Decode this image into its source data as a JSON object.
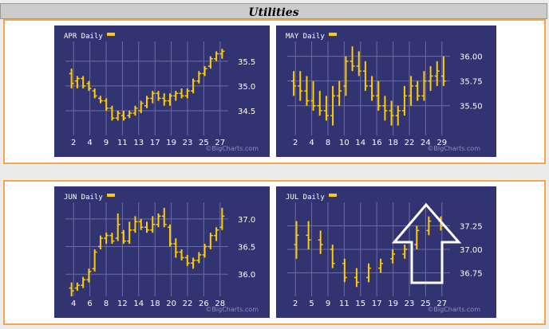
{
  "title": "Utilities",
  "watermark": "©BigCharts.com",
  "colors": {
    "background": "#323371",
    "bars": "#ffcc00",
    "grid": "#6b6ca5",
    "border": "#f5a54a"
  },
  "chart_data": [
    {
      "type": "ohlc",
      "label": "APR Daily",
      "x_tick_labels": [
        "2",
        "4",
        "9",
        "11",
        "13",
        "17",
        "19",
        "23",
        "25",
        "27"
      ],
      "y_tick_labels": [
        "34.5",
        "35.0",
        "35.5"
      ],
      "y_ticks": [
        34.5,
        35.0,
        35.5
      ],
      "ylim": [
        34.0,
        35.9
      ],
      "grid": true,
      "bars": [
        {
          "high": 35.35,
          "low": 34.95,
          "open": 35.25,
          "close": 35.05
        },
        {
          "high": 35.2,
          "low": 34.95,
          "open": 35.1,
          "close": 35.15
        },
        {
          "high": 35.2,
          "low": 34.95,
          "open": 35.15,
          "close": 35.0
        },
        {
          "high": 35.1,
          "low": 34.9,
          "open": 35.05,
          "close": 34.95
        },
        {
          "high": 34.95,
          "low": 34.75,
          "open": 34.9,
          "close": 34.8
        },
        {
          "high": 34.8,
          "low": 34.65,
          "open": 34.75,
          "close": 34.7
        },
        {
          "high": 34.75,
          "low": 34.5,
          "open": 34.7,
          "close": 34.55
        },
        {
          "high": 34.6,
          "low": 34.3,
          "open": 34.55,
          "close": 34.35
        },
        {
          "high": 34.5,
          "low": 34.3,
          "open": 34.35,
          "close": 34.45
        },
        {
          "high": 34.5,
          "low": 34.3,
          "open": 34.4,
          "close": 34.35
        },
        {
          "high": 34.5,
          "low": 34.35,
          "open": 34.4,
          "close": 34.45
        },
        {
          "high": 34.6,
          "low": 34.4,
          "open": 34.45,
          "close": 34.55
        },
        {
          "high": 34.7,
          "low": 34.45,
          "open": 34.5,
          "close": 34.65
        },
        {
          "high": 34.8,
          "low": 34.55,
          "open": 34.6,
          "close": 34.75
        },
        {
          "high": 34.9,
          "low": 34.65,
          "open": 34.75,
          "close": 34.85
        },
        {
          "high": 34.9,
          "low": 34.7,
          "open": 34.85,
          "close": 34.75
        },
        {
          "high": 34.85,
          "low": 34.6,
          "open": 34.75,
          "close": 34.7
        },
        {
          "high": 34.85,
          "low": 34.6,
          "open": 34.7,
          "close": 34.8
        },
        {
          "high": 34.9,
          "low": 34.7,
          "open": 34.8,
          "close": 34.85
        },
        {
          "high": 34.95,
          "low": 34.75,
          "open": 34.85,
          "close": 34.8
        },
        {
          "high": 34.95,
          "low": 34.75,
          "open": 34.8,
          "close": 34.9
        },
        {
          "high": 35.15,
          "low": 34.85,
          "open": 34.9,
          "close": 35.1
        },
        {
          "high": 35.3,
          "low": 35.05,
          "open": 35.1,
          "close": 35.25
        },
        {
          "high": 35.4,
          "low": 35.2,
          "open": 35.25,
          "close": 35.35
        },
        {
          "high": 35.6,
          "low": 35.35,
          "open": 35.4,
          "close": 35.55
        },
        {
          "high": 35.7,
          "low": 35.5,
          "open": 35.55,
          "close": 35.65
        },
        {
          "high": 35.75,
          "low": 35.55,
          "open": 35.65,
          "close": 35.7
        }
      ]
    },
    {
      "type": "ohlc",
      "label": "MAY Daily",
      "x_tick_labels": [
        "2",
        "4",
        "8",
        "10",
        "14",
        "16",
        "18",
        "22",
        "24",
        "29"
      ],
      "y_tick_labels": [
        "35.50",
        "35.75",
        "36.00"
      ],
      "y_ticks": [
        35.5,
        35.75,
        36.0
      ],
      "ylim": [
        35.2,
        36.15
      ],
      "grid": true,
      "bars": [
        {
          "high": 35.85,
          "low": 35.6,
          "open": 35.75,
          "close": 35.7
        },
        {
          "high": 35.85,
          "low": 35.55,
          "open": 35.7,
          "close": 35.65
        },
        {
          "high": 35.8,
          "low": 35.5,
          "open": 35.65,
          "close": 35.55
        },
        {
          "high": 35.75,
          "low": 35.45,
          "open": 35.55,
          "close": 35.5
        },
        {
          "high": 35.65,
          "low": 35.4,
          "open": 35.5,
          "close": 35.45
        },
        {
          "high": 35.6,
          "low": 35.35,
          "open": 35.45,
          "close": 35.4
        },
        {
          "high": 35.7,
          "low": 35.3,
          "open": 35.4,
          "close": 35.6
        },
        {
          "high": 35.75,
          "low": 35.5,
          "open": 35.6,
          "close": 35.65
        },
        {
          "high": 36.0,
          "low": 35.6,
          "open": 35.7,
          "close": 35.95
        },
        {
          "high": 36.1,
          "low": 35.85,
          "open": 35.95,
          "close": 35.9
        },
        {
          "high": 36.05,
          "low": 35.8,
          "open": 35.9,
          "close": 35.85
        },
        {
          "high": 35.95,
          "low": 35.65,
          "open": 35.85,
          "close": 35.7
        },
        {
          "high": 35.8,
          "low": 35.55,
          "open": 35.7,
          "close": 35.6
        },
        {
          "high": 35.75,
          "low": 35.45,
          "open": 35.6,
          "close": 35.5
        },
        {
          "high": 35.6,
          "low": 35.35,
          "open": 35.5,
          "close": 35.45
        },
        {
          "high": 35.55,
          "low": 35.3,
          "open": 35.45,
          "close": 35.4
        },
        {
          "high": 35.5,
          "low": 35.3,
          "open": 35.4,
          "close": 35.45
        },
        {
          "high": 35.7,
          "low": 35.4,
          "open": 35.45,
          "close": 35.6
        },
        {
          "high": 35.8,
          "low": 35.5,
          "open": 35.6,
          "close": 35.7
        },
        {
          "high": 35.75,
          "low": 35.55,
          "open": 35.7,
          "close": 35.6
        },
        {
          "high": 35.85,
          "low": 35.55,
          "open": 35.6,
          "close": 35.75
        },
        {
          "high": 35.9,
          "low": 35.65,
          "open": 35.75,
          "close": 35.8
        },
        {
          "high": 35.95,
          "low": 35.7,
          "open": 35.8,
          "close": 35.85
        },
        {
          "high": 36.0,
          "low": 35.7,
          "open": 35.8,
          "close": 35.75
        }
      ]
    },
    {
      "type": "ohlc",
      "label": "JUN Daily",
      "x_tick_labels": [
        "4",
        "6",
        "8",
        "12",
        "14",
        "18",
        "20",
        "22",
        "26",
        "28"
      ],
      "y_tick_labels": [
        "36.0",
        "36.5",
        "37.0"
      ],
      "y_ticks": [
        36.0,
        36.5,
        37.0
      ],
      "ylim": [
        35.6,
        37.3
      ],
      "grid": true,
      "bars": [
        {
          "high": 35.85,
          "low": 35.6,
          "open": 35.75,
          "close": 35.7
        },
        {
          "high": 35.85,
          "low": 35.7,
          "open": 35.75,
          "close": 35.8
        },
        {
          "high": 35.95,
          "low": 35.75,
          "open": 35.8,
          "close": 35.9
        },
        {
          "high": 36.1,
          "low": 35.85,
          "open": 35.9,
          "close": 36.05
        },
        {
          "high": 36.45,
          "low": 36.05,
          "open": 36.1,
          "close": 36.4
        },
        {
          "high": 36.7,
          "low": 36.45,
          "open": 36.5,
          "close": 36.65
        },
        {
          "high": 36.75,
          "low": 36.55,
          "open": 36.65,
          "close": 36.7
        },
        {
          "high": 36.75,
          "low": 36.55,
          "open": 36.7,
          "close": 36.6
        },
        {
          "high": 37.1,
          "low": 36.6,
          "open": 36.65,
          "close": 36.9
        },
        {
          "high": 36.8,
          "low": 36.55,
          "open": 36.75,
          "close": 36.6
        },
        {
          "high": 36.95,
          "low": 36.55,
          "open": 36.6,
          "close": 36.8
        },
        {
          "high": 37.05,
          "low": 36.75,
          "open": 36.8,
          "close": 36.95
        },
        {
          "high": 37.0,
          "low": 36.8,
          "open": 36.95,
          "close": 36.85
        },
        {
          "high": 36.95,
          "low": 36.75,
          "open": 36.85,
          "close": 36.8
        },
        {
          "high": 37.05,
          "low": 36.75,
          "open": 36.8,
          "close": 36.9
        },
        {
          "high": 37.1,
          "low": 36.85,
          "open": 36.9,
          "close": 37.05
        },
        {
          "high": 37.2,
          "low": 36.85,
          "open": 37.05,
          "close": 36.9
        },
        {
          "high": 36.9,
          "low": 36.5,
          "open": 36.85,
          "close": 36.55
        },
        {
          "high": 36.65,
          "low": 36.3,
          "open": 36.55,
          "close": 36.4
        },
        {
          "high": 36.45,
          "low": 36.25,
          "open": 36.4,
          "close": 36.3
        },
        {
          "high": 36.35,
          "low": 36.15,
          "open": 36.3,
          "close": 36.2
        },
        {
          "high": 36.3,
          "low": 36.1,
          "open": 36.2,
          "close": 36.25
        },
        {
          "high": 36.4,
          "low": 36.2,
          "open": 36.25,
          "close": 36.35
        },
        {
          "high": 36.55,
          "low": 36.3,
          "open": 36.35,
          "close": 36.5
        },
        {
          "high": 36.75,
          "low": 36.45,
          "open": 36.5,
          "close": 36.7
        },
        {
          "high": 36.85,
          "low": 36.6,
          "open": 36.7,
          "close": 36.8
        },
        {
          "high": 37.2,
          "low": 36.8,
          "open": 36.85,
          "close": 37.05
        }
      ]
    },
    {
      "type": "ohlc",
      "label": "JUL Daily",
      "x_tick_labels": [
        "2",
        "5",
        "9",
        "11",
        "15",
        "17",
        "19",
        "23",
        "25",
        "27"
      ],
      "y_tick_labels": [
        "36.75",
        "37.00",
        "37.25"
      ],
      "y_ticks": [
        36.75,
        37.0,
        37.25
      ],
      "ylim": [
        36.5,
        37.5
      ],
      "grid": true,
      "bars": [
        {
          "high": 37.3,
          "low": 36.9,
          "open": 37.05,
          "close": 37.15
        },
        {
          "high": 37.3,
          "low": 37.0,
          "open": 37.15,
          "close": 37.1
        },
        {
          "high": 37.2,
          "low": 36.95,
          "open": 37.1,
          "close": 37.05
        },
        {
          "high": 37.05,
          "low": 36.8,
          "open": 37.0,
          "close": 36.85
        },
        {
          "high": 36.9,
          "low": 36.65,
          "open": 36.85,
          "close": 36.7
        },
        {
          "high": 36.8,
          "low": 36.6,
          "open": 36.7,
          "close": 36.65
        },
        {
          "high": 36.85,
          "low": 36.65,
          "open": 36.7,
          "close": 36.8
        },
        {
          "high": 36.9,
          "low": 36.75,
          "open": 36.8,
          "close": 36.85
        },
        {
          "high": 37.0,
          "low": 36.85,
          "open": 36.9,
          "close": 36.95
        },
        {
          "high": 37.05,
          "low": 36.9,
          "open": 36.95,
          "close": 37.0
        },
        {
          "high": 37.25,
          "low": 37.0,
          "open": 37.05,
          "close": 37.2
        },
        {
          "high": 37.35,
          "low": 37.15,
          "open": 37.2,
          "close": 37.3
        },
        {
          "high": 37.35,
          "low": 37.2,
          "open": 37.3,
          "close": 37.25
        }
      ]
    }
  ]
}
